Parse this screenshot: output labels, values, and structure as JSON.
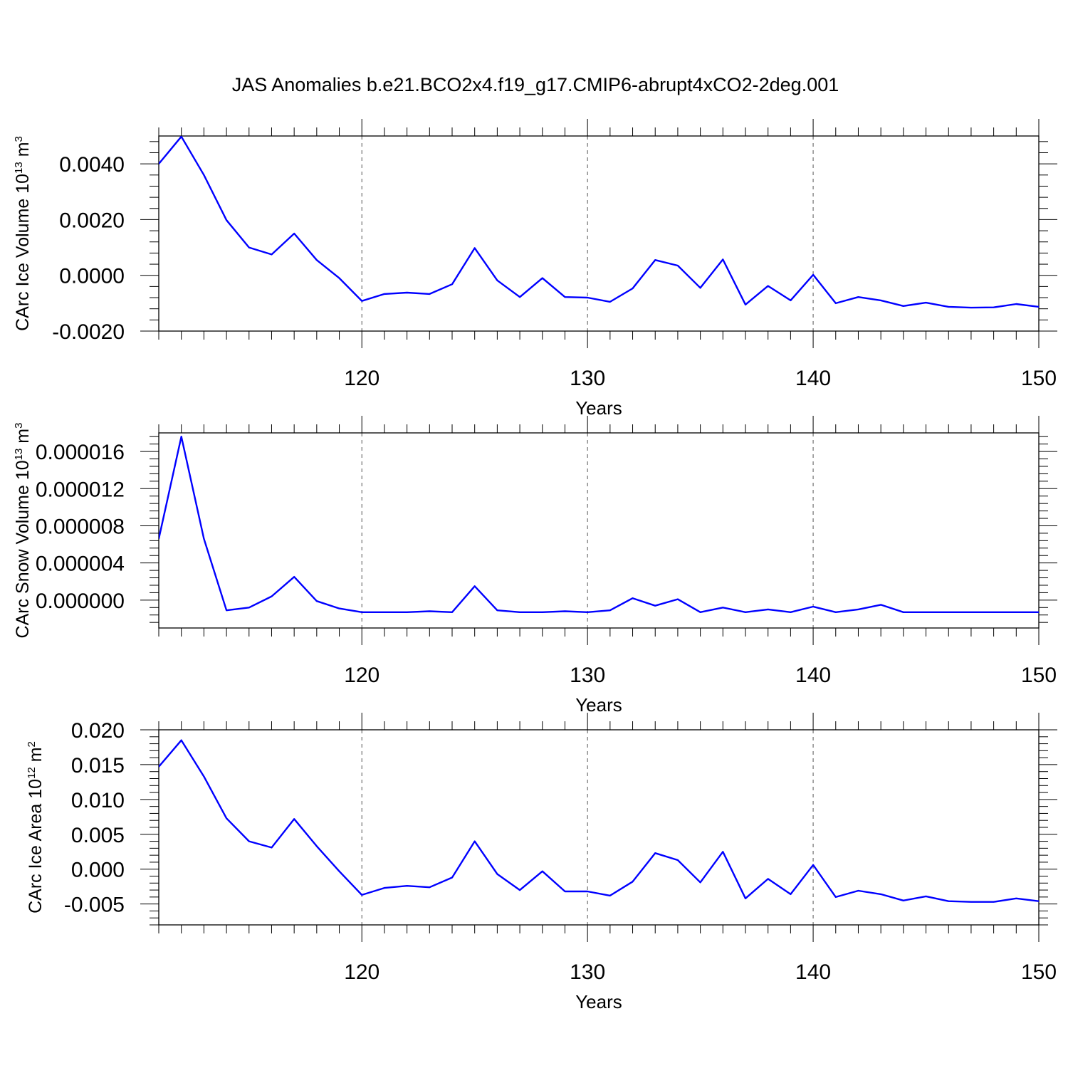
{
  "title": "JAS Anomalies b.e21.BCO2x4.f19_g17.CMIP6-abrupt4xCO2-2deg.001",
  "line_color": "#0000ff",
  "chart_data": [
    {
      "type": "line",
      "ylabel": {
        "text": "CArc Ice Volume 10",
        "sup": "13",
        "unit": " m",
        "unit_sup": "3"
      },
      "xlabel": "Years",
      "xlim": [
        111,
        150
      ],
      "ylim": [
        -0.002,
        0.005
      ],
      "x_ticks": [
        120,
        130,
        140,
        150
      ],
      "y_ticks": [
        -0.002,
        0.0,
        0.002,
        0.004
      ],
      "y_tick_labels": [
        "-0.0020",
        "0.0000",
        "0.0020",
        "0.0040"
      ],
      "y_minor_step": 0.0004,
      "vertical_grid": [
        120,
        130,
        140
      ],
      "x": [
        111,
        112,
        113,
        114,
        115,
        116,
        117,
        118,
        119,
        120,
        121,
        122,
        123,
        124,
        125,
        126,
        127,
        128,
        129,
        130,
        131,
        132,
        133,
        134,
        135,
        136,
        137,
        138,
        139,
        140,
        141,
        142,
        143,
        144,
        145,
        146,
        147,
        148,
        149,
        150
      ],
      "series": [
        {
          "values": [
            0.004,
            0.00498,
            0.0036,
            0.00198,
            0.001,
            0.00075,
            0.0015,
            0.00055,
            -0.0001,
            -0.00092,
            -0.00067,
            -0.00062,
            -0.00067,
            -0.00032,
            0.00098,
            -0.00018,
            -0.00078,
            -0.0001,
            -0.00078,
            -0.0008,
            -0.00095,
            -0.00047,
            0.00055,
            0.00035,
            -0.00045,
            0.00057,
            -0.00105,
            -0.00038,
            -0.0009,
            2e-05,
            -0.001,
            -0.00078,
            -0.0009,
            -0.0011,
            -0.00098,
            -0.00113,
            -0.00116,
            -0.00115,
            -0.00103,
            -0.00113
          ]
        }
      ]
    },
    {
      "type": "line",
      "ylabel": {
        "text": "CArc Snow Volume 10",
        "sup": "13",
        "unit": " m",
        "unit_sup": "3"
      },
      "xlabel": "Years",
      "xlim": [
        111,
        150
      ],
      "ylim": [
        -3e-06,
        1.8e-05
      ],
      "x_ticks": [
        120,
        130,
        140,
        150
      ],
      "y_ticks": [
        0.0,
        4e-06,
        8e-06,
        1.2e-05,
        1.6e-05
      ],
      "y_tick_labels": [
        "0.000000",
        "0.000004",
        "0.000008",
        "0.000012",
        "0.000016"
      ],
      "y_minor_step": 8e-07,
      "vertical_grid": [
        120,
        130,
        140
      ],
      "x": [
        111,
        112,
        113,
        114,
        115,
        116,
        117,
        118,
        119,
        120,
        121,
        122,
        123,
        124,
        125,
        126,
        127,
        128,
        129,
        130,
        131,
        132,
        133,
        134,
        135,
        136,
        137,
        138,
        139,
        140,
        141,
        142,
        143,
        144,
        145,
        146,
        147,
        148,
        149,
        150
      ],
      "series": [
        {
          "values": [
            6.6e-06,
            1.76e-05,
            6.6e-06,
            -1.1e-06,
            -8e-07,
            4e-07,
            2.5e-06,
            -1e-07,
            -9e-07,
            -1.3e-06,
            -1.3e-06,
            -1.3e-06,
            -1.2e-06,
            -1.3e-06,
            1.5e-06,
            -1.1e-06,
            -1.3e-06,
            -1.3e-06,
            -1.2e-06,
            -1.3e-06,
            -1.1e-06,
            2e-07,
            -6e-07,
            1e-07,
            -1.3e-06,
            -8e-07,
            -1.3e-06,
            -1e-06,
            -1.3e-06,
            -7e-07,
            -1.3e-06,
            -1e-06,
            -5e-07,
            -1.3e-06,
            -1.3e-06,
            -1.3e-06,
            -1.3e-06,
            -1.3e-06,
            -1.3e-06,
            -1.3e-06
          ]
        }
      ]
    },
    {
      "type": "line",
      "ylabel": {
        "text": "CArc Ice Area 10",
        "sup": "12",
        "unit": " m",
        "unit_sup": "2"
      },
      "xlabel": "Years",
      "xlim": [
        111,
        150
      ],
      "ylim": [
        -0.008,
        0.02
      ],
      "x_ticks": [
        120,
        130,
        140,
        150
      ],
      "y_ticks": [
        -0.005,
        0.0,
        0.005,
        0.01,
        0.015,
        0.02
      ],
      "y_tick_labels": [
        "-0.005",
        "0.000",
        "0.005",
        "0.010",
        "0.015",
        "0.020"
      ],
      "y_minor_step": 0.001,
      "vertical_grid": [
        120,
        130,
        140
      ],
      "x": [
        111,
        112,
        113,
        114,
        115,
        116,
        117,
        118,
        119,
        120,
        121,
        122,
        123,
        124,
        125,
        126,
        127,
        128,
        129,
        130,
        131,
        132,
        133,
        134,
        135,
        136,
        137,
        138,
        139,
        140,
        141,
        142,
        143,
        144,
        145,
        146,
        147,
        148,
        149,
        150
      ],
      "series": [
        {
          "values": [
            0.0147,
            0.0185,
            0.0133,
            0.0073,
            0.004,
            0.0031,
            0.0072,
            0.0033,
            -0.0003,
            -0.0037,
            -0.0027,
            -0.0024,
            -0.0026,
            -0.0012,
            0.004,
            -0.0007,
            -0.003,
            -0.0003,
            -0.0032,
            -0.0032,
            -0.0038,
            -0.0018,
            0.0023,
            0.0013,
            -0.0019,
            0.0025,
            -0.0042,
            -0.0014,
            -0.0036,
            0.0006,
            -0.004,
            -0.0031,
            -0.0036,
            -0.0045,
            -0.0039,
            -0.0046,
            -0.0047,
            -0.0047,
            -0.0042,
            -0.0046
          ]
        }
      ]
    }
  ]
}
